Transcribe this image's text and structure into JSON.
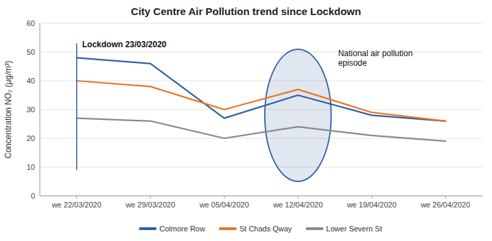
{
  "chart_data": {
    "type": "line",
    "title": "City Centre Air Pollution trend since Lockdown",
    "y_label": "Concentration NO₂ (μg/m³)",
    "categories": [
      "we 22/03/2020",
      "we 29/03/2020",
      "we 05/04/2020",
      "we 12/04/2020",
      "we 19/04/2020",
      "we 26/04/2020"
    ],
    "series": [
      {
        "name": "Colmore Row",
        "color": "#2E5FA3",
        "values": [
          48,
          46,
          27,
          35,
          28,
          26
        ]
      },
      {
        "name": "St Chads Qway",
        "color": "#E87722",
        "values": [
          40,
          38,
          30,
          37,
          29,
          26
        ]
      },
      {
        "name": "Lower Severn St",
        "color": "#888888",
        "values": [
          27,
          26,
          20,
          24,
          21,
          19
        ]
      }
    ],
    "ylim": [
      0,
      60
    ],
    "yticks": [
      0,
      10,
      20,
      30,
      40,
      50,
      60
    ],
    "grid": true,
    "legend": "bottom",
    "annotations": [
      {
        "text": "Lockdown 23/03/2020",
        "category": "we 22/03/2020",
        "y_from": 9,
        "y_to": 53,
        "color": "#2E5FA3"
      },
      {
        "text": "National air pollution\nepisode",
        "category": "we 12/04/2020",
        "y_from": 5,
        "y_to": 51,
        "color": "#2E5FA3"
      }
    ]
  }
}
